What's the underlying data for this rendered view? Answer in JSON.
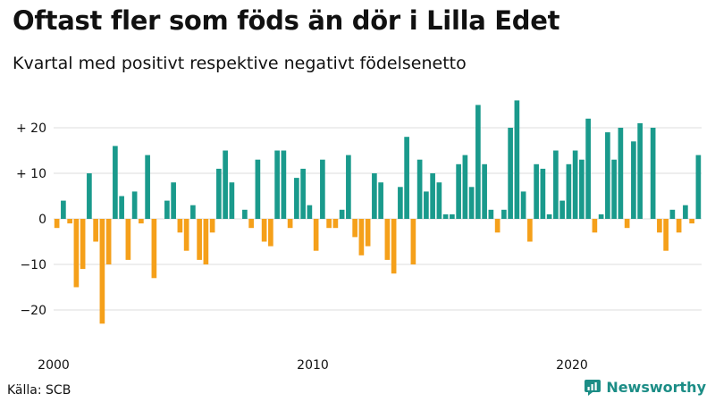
{
  "chart_data": {
    "type": "bar",
    "title": "Oftast fler som föds än dör i Lilla Edet",
    "subtitle": "Kvartal med positivt respektive negativt födelsenetto",
    "xlabel": "",
    "ylabel": "",
    "ylim": [
      -28,
      28
    ],
    "y_ticks": [
      20,
      10,
      0,
      -10,
      -20
    ],
    "y_tick_labels": [
      "+ 20",
      "+ 10",
      "0",
      "−10",
      "−20"
    ],
    "x_ticks": [
      {
        "label": "2000",
        "year": 2000
      },
      {
        "label": "2010",
        "year": 2010
      },
      {
        "label": "2020",
        "year": 2020
      }
    ],
    "start_year": 2000,
    "periods_per_year": 4,
    "positive_color": "#1a9a8c",
    "negative_color": "#f5a01a",
    "series": [
      {
        "name": "Födelsenetto per kvartal",
        "values": [
          -2,
          4,
          -1,
          -15,
          -11,
          10,
          -5,
          -23,
          -10,
          16,
          5,
          -9,
          6,
          -1,
          14,
          -13,
          0,
          4,
          8,
          -3,
          -7,
          3,
          -9,
          -10,
          -3,
          11,
          15,
          8,
          0,
          2,
          -2,
          13,
          -5,
          -6,
          15,
          15,
          -2,
          9,
          11,
          3,
          -7,
          13,
          -2,
          -2,
          2,
          14,
          -4,
          -8,
          -6,
          10,
          8,
          -9,
          -12,
          7,
          18,
          -10,
          13,
          6,
          10,
          8,
          1,
          1,
          12,
          14,
          7,
          25,
          12,
          2,
          -3,
          2,
          20,
          26,
          6,
          -5,
          12,
          11,
          1,
          15,
          4,
          12,
          15,
          13,
          22,
          -3,
          1,
          19,
          13,
          20,
          -2,
          17,
          21,
          0,
          20,
          -3,
          -7,
          2,
          -3,
          3,
          -1,
          14
        ]
      }
    ]
  },
  "footer": {
    "source": "Källa: SCB",
    "brand": "Newsworthy"
  },
  "colors": {
    "brand": "#1c8d86",
    "grid": "#dddddd"
  }
}
